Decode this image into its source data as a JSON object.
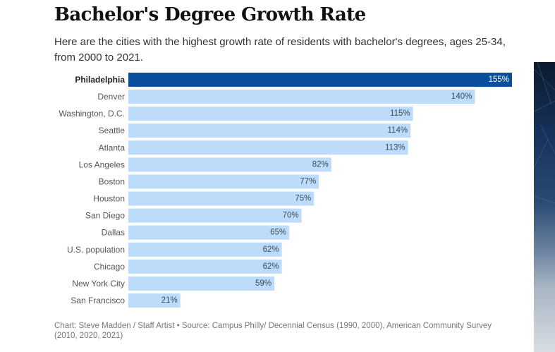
{
  "header": {
    "title": "Bachelor's Degree Growth Rate",
    "subtitle": "Here are the cities with the highest growth rate of residents with bachelor's degrees, ages 25-34, from 2000 to 2021."
  },
  "footer": {
    "source": "Chart: Steve Madden / Staff Artist • Source: Campus Philly/ Decennial Census (1990, 2000), American Community Survey (2010, 2020, 2021)"
  },
  "colors": {
    "highlight_bar": "#0a4f9a",
    "bar": "#bddcfa",
    "highlight_label": "#ffffff",
    "label": "#3a4a5a",
    "category_text": "#555555",
    "highlight_category_text": "#222222"
  },
  "chart_data": {
    "type": "bar",
    "orientation": "horizontal",
    "categories": [
      "Philadelphia",
      "Denver",
      "Washington, D.C.",
      "Seattle",
      "Atlanta",
      "Los Angeles",
      "Boston",
      "Houston",
      "San Diego",
      "Dallas",
      "U.S. population",
      "Chicago",
      "New York City",
      "San Francisco"
    ],
    "values": [
      155,
      140,
      115,
      114,
      113,
      82,
      77,
      75,
      70,
      65,
      62,
      62,
      59,
      21
    ],
    "data_labels": [
      "155%",
      "140%",
      "115%",
      "114%",
      "113%",
      "82%",
      "77%",
      "75%",
      "70%",
      "65%",
      "62%",
      "62%",
      "59%",
      "21%"
    ],
    "highlight": "Philadelphia",
    "xlim": [
      0,
      155
    ],
    "grid": false,
    "legend": "none"
  }
}
